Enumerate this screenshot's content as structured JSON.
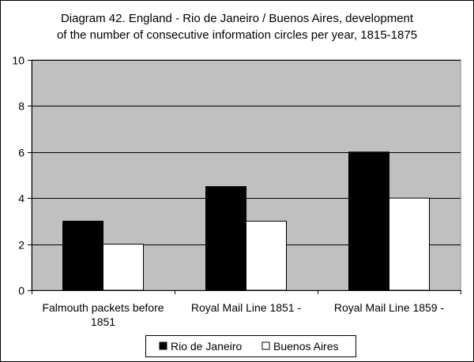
{
  "chart_data": {
    "type": "bar",
    "title_lines": [
      "Diagram 42. England - Rio de Janeiro / Buenos Aires, development",
      "of the number of consecutive information circles per year, 1815-1875"
    ],
    "categories": [
      [
        "Falmouth packets before",
        "1851"
      ],
      [
        "Royal Mail Line 1851 -"
      ],
      [
        "Royal Mail Line 1859 -"
      ]
    ],
    "series": [
      {
        "name": "Rio de Janeiro",
        "values": [
          3,
          4.5,
          6
        ],
        "color": "#000000"
      },
      {
        "name": "Buenos Aires",
        "values": [
          2,
          3,
          4
        ],
        "color": "#ffffff"
      }
    ],
    "ylim": [
      0,
      10
    ],
    "yticks": [
      0,
      2,
      4,
      6,
      8,
      10
    ],
    "grid": true,
    "plot_background": "#c0c0c0",
    "legend_position": "bottom"
  }
}
